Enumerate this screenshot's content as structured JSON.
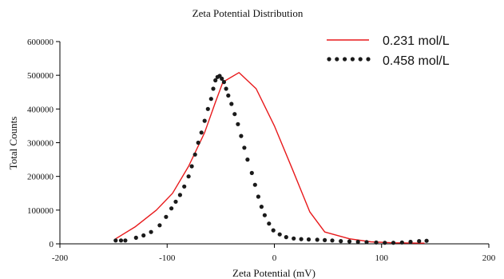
{
  "chart_data": {
    "type": "line",
    "title": "Zeta Potential Distribution",
    "xlabel": "Zeta Potential (mV)",
    "ylabel": "Total Counts",
    "xlim": [
      -200,
      200
    ],
    "ylim": [
      0,
      600000
    ],
    "xticks": [
      -200,
      -100,
      0,
      100,
      200
    ],
    "xtick_labels": [
      "-200",
      "-100",
      "0",
      "100",
      "200"
    ],
    "yticks": [
      0,
      100000,
      200000,
      300000,
      400000,
      500000,
      600000
    ],
    "ytick_labels": [
      "0",
      "100000",
      "200000",
      "300000",
      "400000",
      "500000",
      "600000"
    ],
    "grid": false,
    "legend_position": "top-right",
    "series": [
      {
        "name": "0.231 mol/L",
        "style": "line",
        "color": "#e8191b",
        "points": [
          [
            -148,
            15000
          ],
          [
            -130,
            50000
          ],
          [
            -110,
            100000
          ],
          [
            -95,
            150000
          ],
          [
            -80,
            230000
          ],
          [
            -65,
            330000
          ],
          [
            -55,
            420000
          ],
          [
            -48,
            480000
          ],
          [
            -33,
            508000
          ],
          [
            -17,
            460000
          ],
          [
            0,
            350000
          ],
          [
            17,
            220000
          ],
          [
            33,
            95000
          ],
          [
            47,
            35000
          ],
          [
            70,
            15000
          ],
          [
            90,
            6000
          ],
          [
            110,
            3000
          ],
          [
            140,
            2000
          ]
        ]
      },
      {
        "name": "0.458 mol/L",
        "style": "dots",
        "color": "#1a1a1a",
        "points": [
          [
            -148,
            10000
          ],
          [
            -143,
            10000
          ],
          [
            -139,
            10000
          ],
          [
            -129,
            18000
          ],
          [
            -122,
            25000
          ],
          [
            -115,
            35000
          ],
          [
            -107,
            55000
          ],
          [
            -101,
            80000
          ],
          [
            -96,
            105000
          ],
          [
            -92,
            125000
          ],
          [
            -88,
            145000
          ],
          [
            -84,
            170000
          ],
          [
            -80,
            200000
          ],
          [
            -77,
            230000
          ],
          [
            -74,
            265000
          ],
          [
            -71,
            300000
          ],
          [
            -68,
            330000
          ],
          [
            -65,
            365000
          ],
          [
            -62,
            400000
          ],
          [
            -59,
            430000
          ],
          [
            -57,
            460000
          ],
          [
            -55,
            485000
          ],
          [
            -53,
            495000
          ],
          [
            -51,
            498000
          ],
          [
            -49,
            490000
          ],
          [
            -47,
            480000
          ],
          [
            -45,
            460000
          ],
          [
            -43,
            440000
          ],
          [
            -40,
            415000
          ],
          [
            -37,
            385000
          ],
          [
            -34,
            355000
          ],
          [
            -31,
            320000
          ],
          [
            -28,
            285000
          ],
          [
            -25,
            250000
          ],
          [
            -21,
            210000
          ],
          [
            -18,
            175000
          ],
          [
            -15,
            140000
          ],
          [
            -12,
            110000
          ],
          [
            -9,
            85000
          ],
          [
            -5,
            60000
          ],
          [
            -1,
            40000
          ],
          [
            5,
            28000
          ],
          [
            11,
            20000
          ],
          [
            18,
            16000
          ],
          [
            25,
            14000
          ],
          [
            32,
            13000
          ],
          [
            40,
            12000
          ],
          [
            47,
            11000
          ],
          [
            54,
            10000
          ],
          [
            62,
            8000
          ],
          [
            70,
            7000
          ],
          [
            78,
            6000
          ],
          [
            86,
            5000
          ],
          [
            95,
            4000
          ],
          [
            103,
            3000
          ],
          [
            111,
            3000
          ],
          [
            119,
            4000
          ],
          [
            127,
            6000
          ],
          [
            135,
            8000
          ],
          [
            142,
            9000
          ]
        ]
      }
    ]
  }
}
